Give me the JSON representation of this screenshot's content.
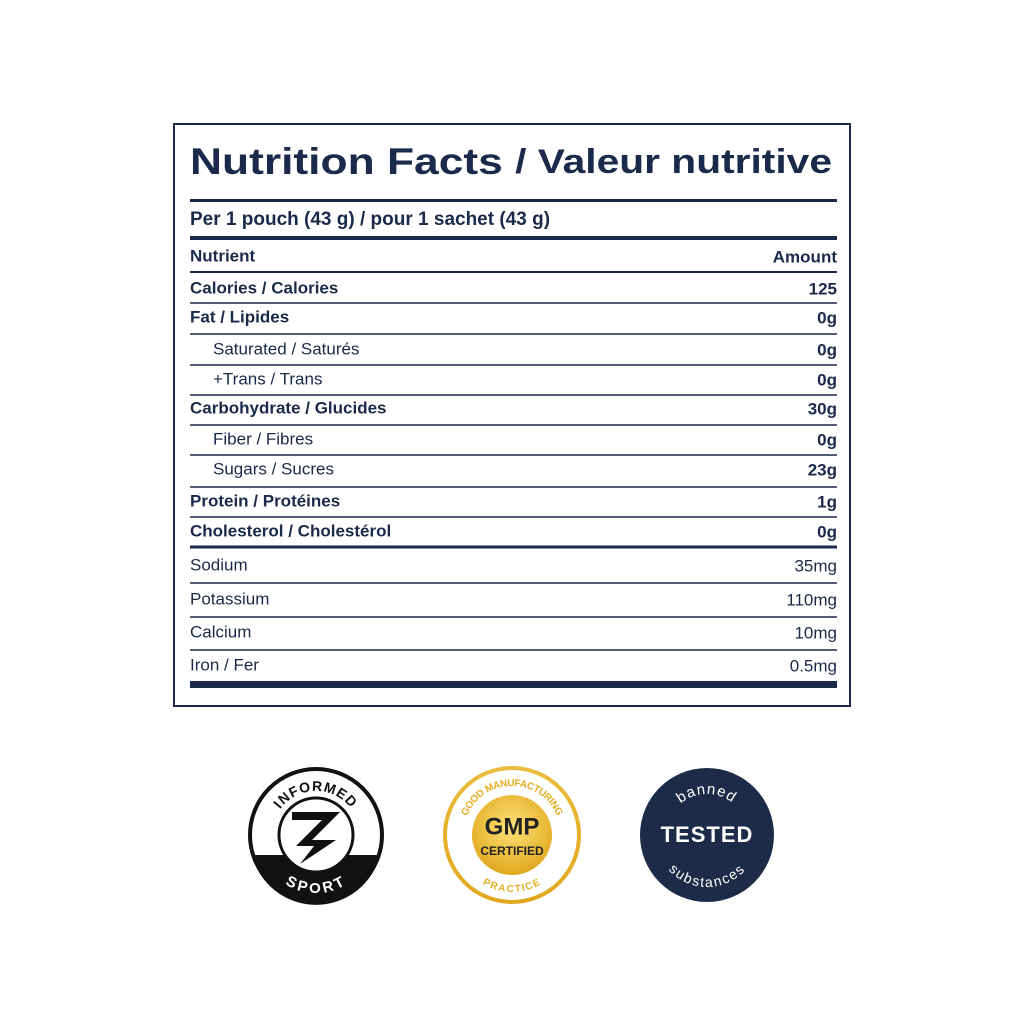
{
  "label": {
    "title_en": "Nutrition Facts",
    "title_fr": "/ Valeur nutritive",
    "serving": "Per 1 pouch (43 g) / pour 1 sachet (43 g)",
    "header": [
      "Nutrient",
      "Amount"
    ],
    "rows": [
      [
        "Calories / Calories",
        "125"
      ],
      [
        "Fat / Lipides",
        "0g"
      ],
      [
        "Saturated / Saturés",
        "0g"
      ],
      [
        "+Trans / Trans",
        "0g"
      ],
      [
        "Carbohydrate / Glucides",
        "30g"
      ],
      [
        "Fiber / Fibres",
        "0g"
      ],
      [
        "Sugars / Sucres",
        "23g"
      ],
      [
        "Protein / Protéines",
        "1g"
      ],
      [
        "Cholesterol / Cholestérol",
        "0g"
      ],
      [
        "Sodium",
        "35mg"
      ],
      [
        "Potassium",
        "110mg"
      ],
      [
        "Calcium",
        "10mg"
      ],
      [
        "Iron / Fer",
        "0.5mg"
      ]
    ]
  },
  "badges": [
    {
      "top": "INFORMED",
      "bottom": "SPORT"
    },
    {
      "top": "GOOD MANUFACTURING",
      "center": "GMP",
      "center2": "CERTIFIED",
      "bottom": "PRACTICE"
    },
    {
      "top": "banned",
      "center": "TESTED",
      "bottom": "substances"
    }
  ]
}
